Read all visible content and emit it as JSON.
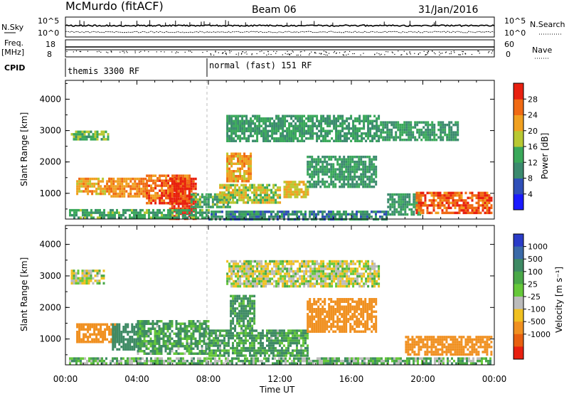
{
  "header": {
    "title": "McMurdo (fitACF)",
    "beam": "Beam 06",
    "date": "31/Jan/2016"
  },
  "top_panels": {
    "nsky_label": "N.Sky",
    "nsearch_label": "N.Search",
    "nsky_ticks": [
      "10^5",
      "10^0"
    ],
    "nsearch_ticks": [
      "10^5",
      "10^0"
    ],
    "freq_label": "Freq.",
    "freq_unit": "[MHz]",
    "freq_ticks": [
      "18",
      "8"
    ],
    "nave_label": "Nave",
    "nave_ticks": [
      "60",
      "0"
    ],
    "cpid_label": "CPID",
    "cpid_segments": [
      {
        "label": "themis 3300 RF",
        "start_h": 0.0,
        "end_h": 8.0
      },
      {
        "label": "normal (fast) 151 RF",
        "start_h": 8.0,
        "end_h": 24.0
      }
    ]
  },
  "x_axis": {
    "title": "Time UT",
    "ticks": [
      "00:00",
      "04:00",
      "08:00",
      "12:00",
      "16:00",
      "20:00",
      "00:00"
    ]
  },
  "power_panel": {
    "ylabel": "Slant Range [km]",
    "yticks": [
      "1000",
      "2000",
      "3000",
      "4000"
    ],
    "colorbar_label": "Power [dB]",
    "colorbar_ticks": [
      "4",
      "8",
      "12",
      "16",
      "20",
      "24",
      "28"
    ],
    "colorbar_colors": [
      "#1a1aff",
      "#2f4fb8",
      "#3b8a6e",
      "#3aa85a",
      "#b8c832",
      "#f0a020",
      "#f06a14",
      "#e82010"
    ]
  },
  "velocity_panel": {
    "ylabel": "Slant Range [km]",
    "yticks": [
      "1000",
      "2000",
      "3000",
      "4000"
    ],
    "colorbar_label": "Velocity [m s⁻¹]",
    "colorbar_ticks": [
      "1000",
      "500",
      "100",
      "25",
      "-25",
      "-100",
      "-500",
      "-1000"
    ],
    "colorbar_colors": [
      "#2a3cc8",
      "#3b6aa8",
      "#3e8a64",
      "#4aa848",
      "#66c83a",
      "#bbbbbb",
      "#f0c020",
      "#f09020",
      "#e86010",
      "#e82010"
    ]
  },
  "chart_data": [
    {
      "type": "heatmap",
      "title": "Power",
      "xlabel": "Time UT",
      "ylabel": "Slant Range [km]",
      "xlim": [
        0,
        24
      ],
      "ylim": [
        180,
        4600
      ],
      "clim": [
        0,
        32
      ],
      "regions": [
        {
          "t0": 0.3,
          "t1": 2.4,
          "r0": 2750,
          "r1": 3000,
          "value": 15
        },
        {
          "t0": 0.6,
          "t1": 2.6,
          "r0": 1000,
          "r1": 1500,
          "value": 22
        },
        {
          "t0": 2.4,
          "t1": 4.5,
          "r0": 900,
          "r1": 1500,
          "value": 24
        },
        {
          "t0": 4.5,
          "t1": 7.0,
          "r0": 700,
          "r1": 1600,
          "value": 26
        },
        {
          "t0": 5.8,
          "t1": 7.3,
          "r0": 200,
          "r1": 1500,
          "value": 30
        },
        {
          "t0": 0.2,
          "t1": 8.0,
          "r0": 200,
          "r1": 500,
          "value": 13
        },
        {
          "t0": 7.0,
          "t1": 9.2,
          "r0": 600,
          "r1": 1000,
          "value": 14
        },
        {
          "t0": 9.0,
          "t1": 10.4,
          "r0": 1400,
          "r1": 2300,
          "value": 22
        },
        {
          "t0": 8.6,
          "t1": 12.0,
          "r0": 700,
          "r1": 1300,
          "value": 18
        },
        {
          "t0": 12.2,
          "t1": 13.6,
          "r0": 900,
          "r1": 1400,
          "value": 20
        },
        {
          "t0": 9.0,
          "t1": 17.5,
          "r0": 2700,
          "r1": 3500,
          "value": 12
        },
        {
          "t0": 13.5,
          "t1": 17.4,
          "r0": 1200,
          "r1": 2200,
          "value": 12
        },
        {
          "t0": 8.0,
          "t1": 18.0,
          "r0": 200,
          "r1": 450,
          "value": 10
        },
        {
          "t0": 18.0,
          "t1": 19.8,
          "r0": 300,
          "r1": 1000,
          "value": 12
        },
        {
          "t0": 19.6,
          "t1": 23.8,
          "r0": 400,
          "r1": 1050,
          "value": 27
        },
        {
          "t0": 17.6,
          "t1": 22.0,
          "r0": 2700,
          "r1": 3300,
          "value": 12
        }
      ]
    },
    {
      "type": "heatmap",
      "title": "Velocity",
      "xlabel": "Time UT",
      "ylabel": "Slant Range [km]",
      "xlim": [
        0,
        24
      ],
      "ylim": [
        180,
        4600
      ],
      "clim": [
        -1000,
        1000
      ],
      "regions": [
        {
          "t0": 0.3,
          "t1": 2.2,
          "r0": 2800,
          "r1": 3200,
          "value": 0
        },
        {
          "t0": 0.6,
          "t1": 2.8,
          "r0": 900,
          "r1": 1500,
          "value": -300
        },
        {
          "t0": 2.6,
          "t1": 4.2,
          "r0": 700,
          "r1": 1500,
          "value": 200
        },
        {
          "t0": 4.0,
          "t1": 8.0,
          "r0": 500,
          "r1": 1600,
          "value": 100
        },
        {
          "t0": 8.0,
          "t1": 13.5,
          "r0": 500,
          "r1": 1300,
          "value": 100
        },
        {
          "t0": 9.2,
          "t1": 10.6,
          "r0": 1300,
          "r1": 2400,
          "value": 120
        },
        {
          "t0": 13.5,
          "t1": 17.4,
          "r0": 1200,
          "r1": 2300,
          "value": -200
        },
        {
          "t0": 19.0,
          "t1": 23.8,
          "r0": 500,
          "r1": 1100,
          "value": -250
        },
        {
          "t0": 9.0,
          "t1": 17.5,
          "r0": 2700,
          "r1": 3500,
          "value": 0
        },
        {
          "t0": 0.2,
          "t1": 23.8,
          "r0": 200,
          "r1": 420,
          "value": 60
        }
      ]
    }
  ]
}
